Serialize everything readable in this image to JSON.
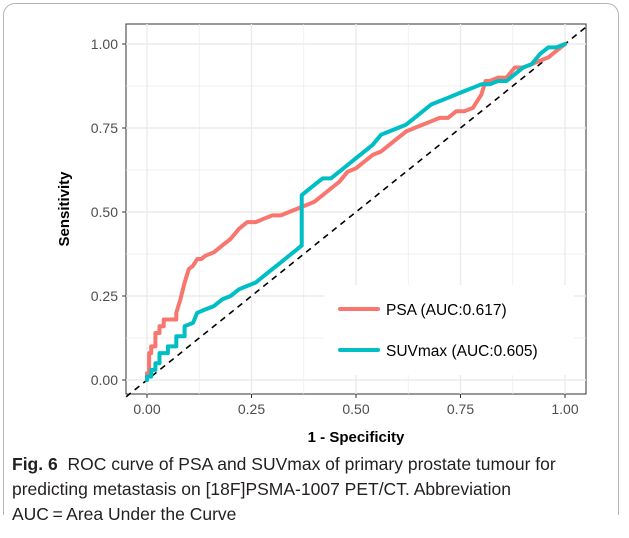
{
  "figure": {
    "label": "Fig. 6",
    "caption_text": "ROC curve of PSA and SUVmax of primary prostate tumour for predicting metastasis on [18F]PSMA-1007 PET/CT. Abbreviation",
    "caption_line3": "AUC = Area Under the Curve"
  },
  "colors": {
    "psa": "#F8766D",
    "suvmax": "#00BFC4",
    "panel": "#ffffff",
    "grid": "#ebebeb",
    "axis_text": "#4d4d4d"
  },
  "chart_data": {
    "type": "line",
    "xlabel": "1 - Specificity",
    "ylabel": "Sensitivity",
    "xlim": [
      0,
      1
    ],
    "ylim": [
      0,
      1
    ],
    "x_ticks": [
      "0.00",
      "0.25",
      "0.50",
      "0.75",
      "1.00"
    ],
    "y_ticks": [
      "0.00",
      "0.25",
      "0.50",
      "0.75",
      "1.00"
    ],
    "grid": true,
    "legend_position": "bottom-right",
    "reference_line": {
      "style": "dashed",
      "from": [
        0,
        0
      ],
      "to": [
        1,
        1
      ]
    },
    "series": [
      {
        "name": "PSA (AUC:0.617)",
        "color_key": "psa",
        "x": [
          0.0,
          0.0,
          0.005,
          0.005,
          0.01,
          0.01,
          0.02,
          0.02,
          0.03,
          0.03,
          0.04,
          0.04,
          0.05,
          0.05,
          0.07,
          0.07,
          0.08,
          0.09,
          0.1,
          0.11,
          0.12,
          0.13,
          0.14,
          0.16,
          0.18,
          0.2,
          0.22,
          0.24,
          0.26,
          0.28,
          0.3,
          0.32,
          0.34,
          0.36,
          0.38,
          0.4,
          0.42,
          0.44,
          0.46,
          0.48,
          0.5,
          0.52,
          0.54,
          0.56,
          0.58,
          0.6,
          0.62,
          0.64,
          0.66,
          0.68,
          0.7,
          0.72,
          0.74,
          0.76,
          0.78,
          0.8,
          0.81,
          0.82,
          0.84,
          0.86,
          0.88,
          0.9,
          0.92,
          0.94,
          0.96,
          0.98,
          1.0
        ],
        "y": [
          0.0,
          0.02,
          0.02,
          0.08,
          0.08,
          0.1,
          0.1,
          0.14,
          0.14,
          0.16,
          0.16,
          0.18,
          0.18,
          0.18,
          0.18,
          0.2,
          0.24,
          0.29,
          0.33,
          0.34,
          0.36,
          0.36,
          0.37,
          0.38,
          0.4,
          0.42,
          0.45,
          0.47,
          0.47,
          0.48,
          0.49,
          0.49,
          0.5,
          0.51,
          0.52,
          0.53,
          0.55,
          0.57,
          0.59,
          0.62,
          0.63,
          0.65,
          0.67,
          0.68,
          0.7,
          0.72,
          0.74,
          0.75,
          0.76,
          0.77,
          0.78,
          0.78,
          0.8,
          0.8,
          0.81,
          0.85,
          0.89,
          0.89,
          0.9,
          0.9,
          0.93,
          0.93,
          0.94,
          0.95,
          0.96,
          0.98,
          1.0
        ]
      },
      {
        "name": "SUVmax (AUC:0.605)",
        "color_key": "suvmax",
        "x": [
          0.0,
          0.0,
          0.01,
          0.01,
          0.02,
          0.02,
          0.03,
          0.03,
          0.05,
          0.05,
          0.07,
          0.07,
          0.09,
          0.09,
          0.11,
          0.12,
          0.14,
          0.16,
          0.18,
          0.2,
          0.22,
          0.24,
          0.26,
          0.28,
          0.3,
          0.32,
          0.34,
          0.36,
          0.37,
          0.37,
          0.38,
          0.4,
          0.42,
          0.44,
          0.46,
          0.48,
          0.5,
          0.52,
          0.54,
          0.56,
          0.58,
          0.6,
          0.62,
          0.64,
          0.66,
          0.68,
          0.7,
          0.72,
          0.74,
          0.76,
          0.78,
          0.8,
          0.82,
          0.84,
          0.86,
          0.88,
          0.9,
          0.92,
          0.94,
          0.96,
          0.98,
          1.0
        ],
        "y": [
          0.0,
          0.01,
          0.01,
          0.03,
          0.03,
          0.05,
          0.05,
          0.08,
          0.08,
          0.1,
          0.1,
          0.13,
          0.13,
          0.16,
          0.17,
          0.2,
          0.21,
          0.22,
          0.24,
          0.25,
          0.27,
          0.28,
          0.29,
          0.31,
          0.33,
          0.35,
          0.37,
          0.39,
          0.4,
          0.55,
          0.56,
          0.58,
          0.6,
          0.6,
          0.62,
          0.64,
          0.66,
          0.68,
          0.7,
          0.73,
          0.74,
          0.75,
          0.76,
          0.78,
          0.8,
          0.82,
          0.83,
          0.84,
          0.85,
          0.86,
          0.87,
          0.88,
          0.88,
          0.89,
          0.89,
          0.91,
          0.93,
          0.94,
          0.97,
          0.99,
          0.99,
          1.0
        ]
      }
    ]
  }
}
